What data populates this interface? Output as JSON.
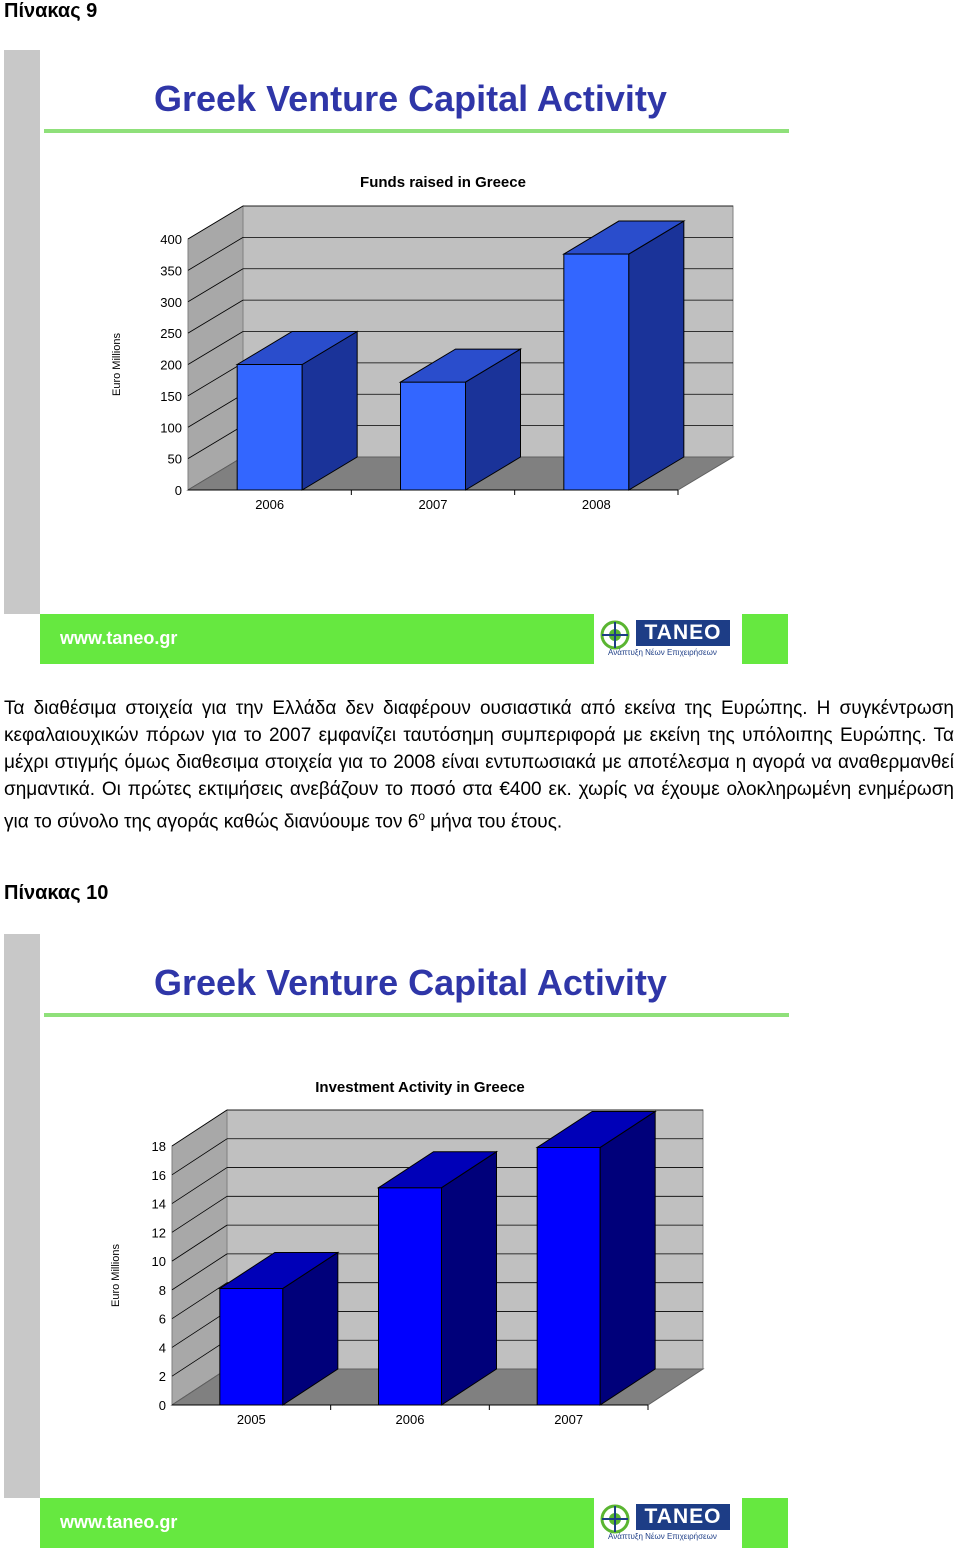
{
  "sections": [
    {
      "heading": "Πίνακας 9"
    },
    {
      "heading": "Πίνακας 10"
    }
  ],
  "slides": [
    {
      "title": "Greek Venture Capital Activity",
      "footer_url": "www.taneo.gr",
      "logo_text": "TANEO",
      "logo_subtitle": "Ανάπτυξη Νέων Επιχειρήσεων"
    },
    {
      "title": "Greek Venture Capital Activity",
      "footer_url": "www.taneo.gr",
      "logo_text": "TANEO",
      "logo_subtitle": "Ανάπτυξη Νέων Επιχειρήσεων"
    }
  ],
  "paragraph": {
    "part1": "Τα διαθέσιμα στοιχεία για την Ελλάδα δεν διαφέρουν ουσιαστικά από εκείνα της Ευρώπης. Η συγκέντρωση κεφαλαιουχικών πόρων για το 2007 εμφανίζει ταυτόσημη συμπεριφορά με εκείνη της υπόλοιπης Ευρώπης. Τα μέχρι στιγμής όμως διαθεσιμα στοιχεία για το 2008 είναι εντυπωσιακά με αποτέλεσμα η αγορά να αναθερμανθεί σημαντικά. Οι πρώτες εκτιμήσεις ανεβάζουν το ποσό στα €400 εκ. χωρίς να έχουμε ολοκληρωμένη ενημέρωση για το σύνολο της αγοράς καθώς διανύουμε τον 6",
    "sup": "ο",
    "part2": " μήνα του έτους."
  },
  "colors": {
    "title_blue": "#2f36a8",
    "footer_green": "#66e840",
    "rule_green": "#8fe07a",
    "band_gray": "#c8c8c8",
    "floor_gray": "#808080",
    "wall_gray": "#c0c0c0",
    "chart1_bar_front": "#3366ff",
    "chart1_bar_side": "#1a3399",
    "chart1_bar_top": "#2a4dcc",
    "chart2_bar_front": "#0000ff",
    "chart2_bar_side": "#00007a",
    "chart2_bar_top": "#0000b8"
  },
  "chart_data": [
    {
      "type": "bar",
      "title": "Funds raised in Greece",
      "ylabel": "Euro Millions",
      "xlabel": "",
      "categories": [
        "2006",
        "2007",
        "2008"
      ],
      "values": [
        200,
        172,
        376
      ],
      "ylim": [
        0,
        400
      ],
      "yticks": [
        "0",
        "50",
        "100",
        "150",
        "200",
        "250",
        "300",
        "350",
        "400"
      ],
      "grid": true,
      "style": "3d-column"
    },
    {
      "type": "bar",
      "title": "Investment Activity in Greece",
      "ylabel": "Euro Millions",
      "xlabel": "",
      "categories": [
        "2005",
        "2006",
        "2007"
      ],
      "values": [
        8.1,
        15.1,
        17.9
      ],
      "ylim": [
        0,
        18
      ],
      "yticks": [
        "0",
        "2",
        "4",
        "6",
        "8",
        "10",
        "12",
        "14",
        "16",
        "18"
      ],
      "grid": true,
      "style": "3d-column"
    }
  ]
}
